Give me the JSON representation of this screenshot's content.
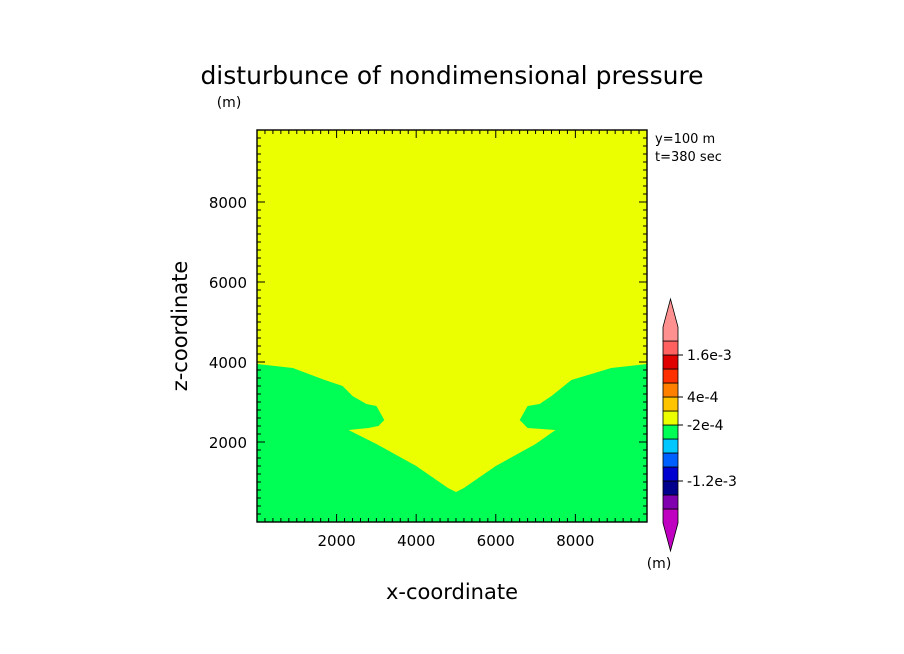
{
  "chart_data": {
    "type": "heatmap",
    "title": "disturbunce of nondimensional pressure",
    "xlabel": "x-coordinate",
    "ylabel": "z-coordinate",
    "x_unit": "(m)",
    "y_unit": "(m)",
    "info": [
      "y=100 m",
      "t=380 sec"
    ],
    "xlim": [
      0,
      9800
    ],
    "ylim": [
      0,
      9800
    ],
    "xticks": [
      2000,
      4000,
      6000,
      8000
    ],
    "yticks": [
      2000,
      4000,
      6000,
      8000
    ],
    "xtick_labels": [
      "2000",
      "4000",
      "6000",
      "8000"
    ],
    "ytick_labels": [
      "2000",
      "4000",
      "6000",
      "8000"
    ],
    "background_level_color": "#ecff00",
    "region": {
      "level_color": "#00ff55",
      "boundary_x": [
        0,
        900,
        1700,
        2150,
        2400,
        2750,
        3000,
        3200,
        3050,
        2800,
        2300,
        3000,
        4000,
        4800,
        5000,
        5200,
        6000,
        7000,
        7500,
        6800,
        6600,
        6800,
        7100,
        7400,
        7900,
        8900,
        9800
      ],
      "boundary_z": [
        3950,
        3850,
        3550,
        3400,
        3150,
        2950,
        2900,
        2550,
        2400,
        2350,
        2300,
        1950,
        1400,
        850,
        750,
        850,
        1400,
        1950,
        2300,
        2350,
        2550,
        2900,
        2950,
        3150,
        3550,
        3850,
        3950
      ]
    },
    "colorbar": {
      "unit": "(m)",
      "colors": [
        "#c000c0",
        "#8000b0",
        "#00008c",
        "#0000d0",
        "#0060ff",
        "#00c8ff",
        "#00ff55",
        "#ecff00",
        "#ffc400",
        "#ff8000",
        "#ff3000",
        "#e00000",
        "#ff6060",
        "#ff9090"
      ],
      "labels": [
        {
          "text": "-1.2e-3",
          "after_index": 2
        },
        {
          "text": "-2e-4",
          "after_index": 6
        },
        {
          "text": "4e-4",
          "after_index": 8
        },
        {
          "text": "1.6e-3",
          "after_index": 11
        }
      ]
    }
  }
}
